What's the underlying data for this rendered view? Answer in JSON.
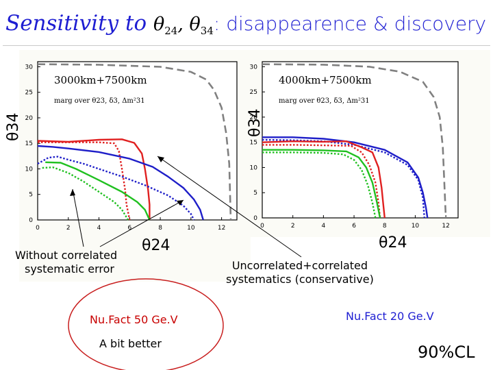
{
  "slide": {
    "title_prefix": "Sensitivity to",
    "title_theta": "θ",
    "title_sub1": "24",
    "title_sep": ",",
    "title_sub2": "34",
    "title_suffix": ": disappearence & discovery",
    "note_left": [
      "Without correlated",
      "systematic error"
    ],
    "note_right": [
      "Uncorrelated+correlated",
      "systematics (conservative)"
    ],
    "label_left": "Nu.Fact 50 Ge.V",
    "label_better": "A bit better",
    "label_right": "Nu.Fact 20 Ge.V",
    "cl_label": "90%CL"
  },
  "colors": {
    "title": "#1e1ed2",
    "red": "#e02020",
    "green": "#20c020",
    "blue": "#1e1ec8",
    "gray": "#808080",
    "circle": "#c81e1e"
  },
  "chart_data": [
    {
      "type": "line",
      "annotation": "3000km+7500km",
      "annotation2": "marg over θ23, δ3, Δm²31",
      "xlabel": "θ24",
      "ylabel": "θ34",
      "xlim": [
        0,
        13
      ],
      "ylim": [
        0,
        31
      ],
      "xticks": [
        "0",
        "2",
        "4",
        "6",
        "8",
        "10",
        "12"
      ],
      "yticks": [
        "0",
        "5",
        "10",
        "15",
        "20",
        "25",
        "30"
      ],
      "series": [
        {
          "color": "gray",
          "dash": "long",
          "x": [
            0,
            4,
            8,
            10,
            11,
            11.5,
            12,
            12.3,
            12.5,
            12.6
          ],
          "y": [
            30.5,
            30.4,
            30,
            29,
            27.5,
            25.5,
            22,
            17,
            11,
            0
          ]
        },
        {
          "color": "red",
          "dash": "solid",
          "x": [
            0,
            2,
            4,
            5.5,
            6.3,
            6.8,
            7,
            7.2,
            7.3,
            7.3
          ],
          "y": [
            15.5,
            15.3,
            15.7,
            15.8,
            15.1,
            13,
            10,
            6,
            3,
            0
          ]
        },
        {
          "color": "red",
          "dash": "dot",
          "x": [
            0,
            2,
            4,
            5,
            5.3,
            5.5,
            5.7,
            5.8,
            6
          ],
          "y": [
            15.2,
            15.2,
            15.2,
            15,
            13.5,
            10,
            6,
            3,
            0
          ]
        },
        {
          "color": "blue",
          "dash": "solid",
          "x": [
            0,
            1,
            2,
            4,
            6,
            7.5,
            8.5,
            9.5,
            10.2,
            10.6,
            10.8
          ],
          "y": [
            14.5,
            14.3,
            14,
            13.3,
            12,
            10.4,
            8.5,
            6.3,
            4,
            2,
            0
          ]
        },
        {
          "color": "blue",
          "dash": "dot",
          "x": [
            0,
            0.7,
            1.3,
            2,
            3,
            4,
            5.5,
            7,
            8.5,
            9.5,
            10,
            10.2
          ],
          "y": [
            11,
            12.2,
            12.4,
            11.8,
            11,
            10,
            8.5,
            6.8,
            4.8,
            2.8,
            1.2,
            0
          ]
        },
        {
          "color": "green",
          "dash": "solid",
          "x": [
            0.5,
            1.5,
            2.5,
            4,
            5.5,
            6.5,
            7,
            7.3
          ],
          "y": [
            11.3,
            11.2,
            10,
            7.8,
            5.5,
            3.5,
            2,
            0
          ]
        },
        {
          "color": "green",
          "dash": "dot",
          "x": [
            0.3,
            1,
            2,
            3,
            4,
            5,
            5.5,
            5.9
          ],
          "y": [
            10.2,
            10.3,
            9.2,
            7.5,
            5.5,
            3.5,
            2,
            0
          ]
        }
      ]
    },
    {
      "type": "line",
      "annotation": "4000km+7500km",
      "annotation2": "marg over θ23, δ3, Δm²31",
      "xlabel": "θ24",
      "ylabel": "θ34",
      "xlim": [
        0,
        12.8
      ],
      "ylim": [
        0,
        31
      ],
      "xticks": [
        "0",
        "2",
        "4",
        "6",
        "8",
        "10",
        "12"
      ],
      "yticks": [
        "0",
        "5",
        "10",
        "15",
        "20",
        "25",
        "30"
      ],
      "series": [
        {
          "color": "gray",
          "dash": "long",
          "x": [
            0,
            4,
            7,
            9,
            10.5,
            11.2,
            11.6,
            11.8,
            11.9,
            12
          ],
          "y": [
            30.5,
            30.4,
            30,
            29,
            27,
            24,
            20,
            14,
            7,
            0
          ]
        },
        {
          "color": "blue",
          "dash": "solid",
          "x": [
            0,
            2,
            4,
            6,
            8,
            9.5,
            10.2,
            10.5,
            10.7,
            10.8
          ],
          "y": [
            16,
            16,
            15.7,
            15,
            13.5,
            11,
            8,
            5,
            2,
            0
          ]
        },
        {
          "color": "blue",
          "dash": "dot",
          "x": [
            0,
            2,
            4,
            6,
            8,
            9.5,
            10.2,
            10.5,
            10.6
          ],
          "y": [
            15.5,
            15.4,
            15.2,
            14.5,
            13,
            10.5,
            7.5,
            4,
            0
          ]
        },
        {
          "color": "red",
          "dash": "solid",
          "x": [
            0,
            2,
            4,
            5.5,
            6.5,
            7.2,
            7.6,
            7.8,
            7.9,
            8
          ],
          "y": [
            15,
            15.2,
            15.1,
            15.2,
            14,
            13,
            10,
            6,
            3,
            0
          ]
        },
        {
          "color": "red",
          "dash": "dot",
          "x": [
            0,
            2,
            4,
            5.8,
            6.5,
            7,
            7.4,
            7.6,
            7.7
          ],
          "y": [
            14.5,
            14.5,
            14.4,
            14.3,
            13,
            10.5,
            7,
            3,
            0
          ]
        },
        {
          "color": "green",
          "dash": "solid",
          "x": [
            0,
            2,
            4,
            5.5,
            6.3,
            6.8,
            7.2,
            7.5,
            7.7
          ],
          "y": [
            13.5,
            13.5,
            13.4,
            13.2,
            12,
            10,
            7,
            3,
            0
          ]
        },
        {
          "color": "green",
          "dash": "dot",
          "x": [
            0,
            2,
            4,
            5.3,
            6,
            6.5,
            6.9,
            7.2,
            7.4
          ],
          "y": [
            13,
            13,
            12.9,
            12.6,
            11.5,
            9.5,
            6.5,
            3,
            0
          ]
        }
      ]
    }
  ]
}
